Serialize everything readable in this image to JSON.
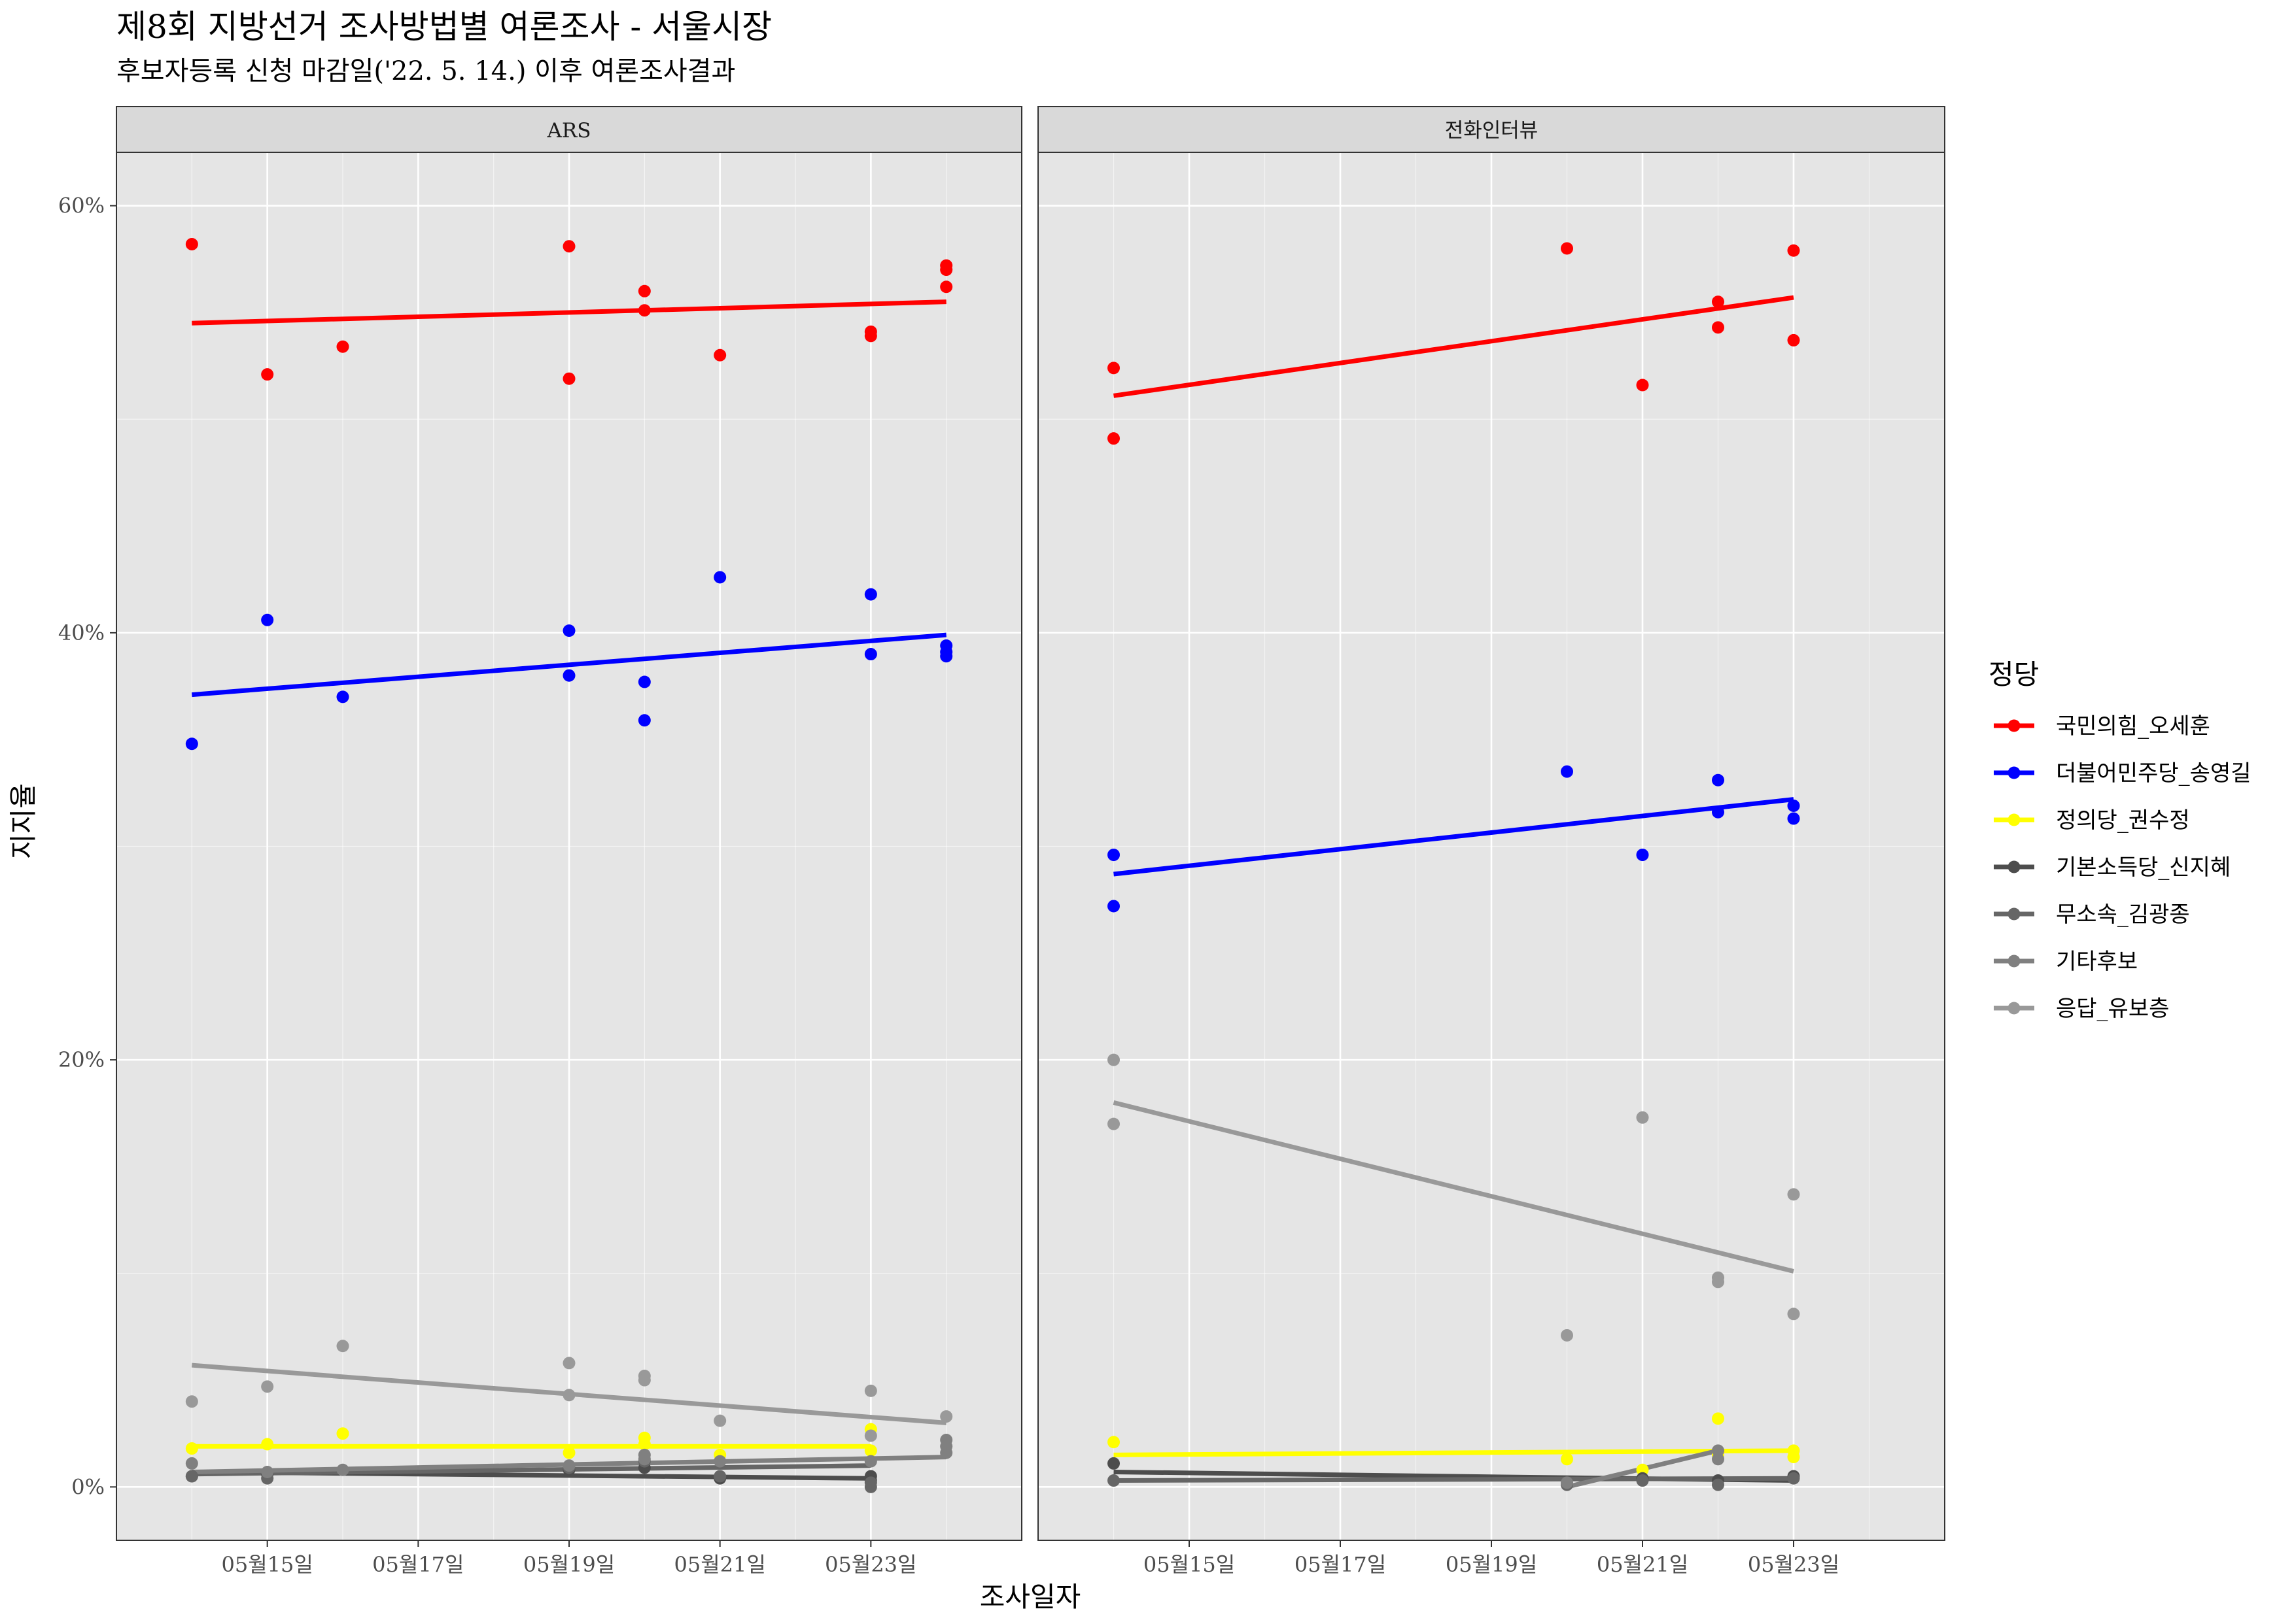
{
  "title": "제8회 지방선거 조사방법별 여론조사 - 서울시장",
  "subtitle": "후보자등록 신청 마감일('22. 5. 14.) 이후 여론조사결과",
  "chart_data": {
    "type": "scatter",
    "xlabel": "조사일자",
    "ylabel": "지지율",
    "x_domain": [
      "2022-05-13",
      "2022-05-25"
    ],
    "ylim": [
      -0.025,
      0.625
    ],
    "y_ticks": [
      0,
      0.2,
      0.4,
      0.6
    ],
    "y_tick_labels": [
      "0%",
      "20%",
      "40%",
      "60%"
    ],
    "x_ticks": [
      "2022-05-15",
      "2022-05-17",
      "2022-05-19",
      "2022-05-21",
      "2022-05-23"
    ],
    "x_tick_labels": [
      "05월15일",
      "05월17일",
      "05월19일",
      "05월21일",
      "05월23일"
    ],
    "grid": true,
    "legend": {
      "title": "정당",
      "position": "right",
      "entries": [
        "국민의힘_오세훈",
        "더불어민주당_송영길",
        "정의당_권수정",
        "기본소득당_신지혜",
        "무소속_김광종",
        "기타후보",
        "응답_유보층"
      ]
    },
    "series_colors": {
      "국민의힘_오세훈": "#ff0000",
      "더불어민주당_송영길": "#0000ff",
      "정의당_권수정": "#ffff00",
      "기본소득당_신지혜": "#4d4d4d",
      "무소속_김광종": "#666666",
      "기타후보": "#808080",
      "응답_유보층": "#999999"
    },
    "facets": [
      {
        "label": "ARS",
        "series": [
          {
            "name": "국민의힘_오세훈",
            "points": [
              [
                "2022-05-14",
                0.582
              ],
              [
                "2022-05-15",
                0.521
              ],
              [
                "2022-05-16",
                0.534
              ],
              [
                "2022-05-19",
                0.581
              ],
              [
                "2022-05-19",
                0.519
              ],
              [
                "2022-05-20",
                0.56
              ],
              [
                "2022-05-20",
                0.551
              ],
              [
                "2022-05-21",
                0.53
              ],
              [
                "2022-05-23",
                0.541
              ],
              [
                "2022-05-23",
                0.539
              ],
              [
                "2022-05-24",
                0.572
              ],
              [
                "2022-05-24",
                0.57
              ],
              [
                "2022-05-24",
                0.562
              ]
            ],
            "fit": [
              [
                "2022-05-14",
                0.545
              ],
              [
                "2022-05-24",
                0.555
              ]
            ]
          },
          {
            "name": "더불어민주당_송영길",
            "points": [
              [
                "2022-05-14",
                0.348
              ],
              [
                "2022-05-15",
                0.406
              ],
              [
                "2022-05-16",
                0.37
              ],
              [
                "2022-05-19",
                0.401
              ],
              [
                "2022-05-19",
                0.38
              ],
              [
                "2022-05-20",
                0.377
              ],
              [
                "2022-05-20",
                0.359
              ],
              [
                "2022-05-21",
                0.426
              ],
              [
                "2022-05-23",
                0.418
              ],
              [
                "2022-05-23",
                0.39
              ],
              [
                "2022-05-24",
                0.394
              ],
              [
                "2022-05-24",
                0.391
              ],
              [
                "2022-05-24",
                0.389
              ]
            ],
            "fit": [
              [
                "2022-05-14",
                0.371
              ],
              [
                "2022-05-24",
                0.399
              ]
            ]
          },
          {
            "name": "정의당_권수정",
            "points": [
              [
                "2022-05-14",
                0.018
              ],
              [
                "2022-05-15",
                0.02
              ],
              [
                "2022-05-16",
                0.025
              ],
              [
                "2022-05-19",
                0.016
              ],
              [
                "2022-05-20",
                0.023
              ],
              [
                "2022-05-20",
                0.02
              ],
              [
                "2022-05-21",
                0.015
              ],
              [
                "2022-05-23",
                0.027
              ],
              [
                "2022-05-23",
                0.017
              ]
            ],
            "fit": [
              [
                "2022-05-14",
                0.019
              ],
              [
                "2022-05-23",
                0.019
              ]
            ]
          },
          {
            "name": "기본소득당_신지혜",
            "points": [
              [
                "2022-05-14",
                0.005
              ],
              [
                "2022-05-15",
                0.006
              ],
              [
                "2022-05-19",
                0.008
              ],
              [
                "2022-05-20",
                0.009
              ],
              [
                "2022-05-21",
                0.004
              ],
              [
                "2022-05-23",
                0.003
              ],
              [
                "2022-05-23",
                0.005
              ]
            ],
            "fit": [
              [
                "2022-05-14",
                0.007
              ],
              [
                "2022-05-23",
                0.004
              ]
            ]
          },
          {
            "name": "무소속_김광종",
            "points": [
              [
                "2022-05-14",
                0.005
              ],
              [
                "2022-05-15",
                0.004
              ],
              [
                "2022-05-19",
                0.009
              ],
              [
                "2022-05-20",
                0.012
              ],
              [
                "2022-05-21",
                0.005
              ],
              [
                "2022-05-23",
                0.002
              ],
              [
                "2022-05-23",
                0.0
              ]
            ],
            "fit": [
              [
                "2022-05-14",
                0.006
              ],
              [
                "2022-05-23",
                0.01
              ]
            ]
          },
          {
            "name": "기타후보",
            "points": [
              [
                "2022-05-14",
                0.011
              ],
              [
                "2022-05-15",
                0.007
              ],
              [
                "2022-05-16",
                0.008
              ],
              [
                "2022-05-19",
                0.01
              ],
              [
                "2022-05-20",
                0.015
              ],
              [
                "2022-05-20",
                0.013
              ],
              [
                "2022-05-21",
                0.012
              ],
              [
                "2022-05-23",
                0.012
              ],
              [
                "2022-05-24",
                0.022
              ],
              [
                "2022-05-24",
                0.019
              ],
              [
                "2022-05-24",
                0.016
              ]
            ],
            "fit": [
              [
                "2022-05-14",
                0.007
              ],
              [
                "2022-05-24",
                0.014
              ]
            ]
          },
          {
            "name": "응답_유보층",
            "points": [
              [
                "2022-05-14",
                0.04
              ],
              [
                "2022-05-15",
                0.047
              ],
              [
                "2022-05-16",
                0.066
              ],
              [
                "2022-05-19",
                0.058
              ],
              [
                "2022-05-19",
                0.043
              ],
              [
                "2022-05-20",
                0.052
              ],
              [
                "2022-05-20",
                0.05
              ],
              [
                "2022-05-21",
                0.031
              ],
              [
                "2022-05-23",
                0.045
              ],
              [
                "2022-05-23",
                0.024
              ],
              [
                "2022-05-24",
                0.033
              ]
            ],
            "fit": [
              [
                "2022-05-14",
                0.057
              ],
              [
                "2022-05-24",
                0.03
              ]
            ]
          }
        ]
      },
      {
        "label": "전화인터뷰",
        "series": [
          {
            "name": "국민의힘_오세훈",
            "points": [
              [
                "2022-05-14",
                0.524
              ],
              [
                "2022-05-14",
                0.491
              ],
              [
                "2022-05-20",
                0.58
              ],
              [
                "2022-05-21",
                0.516
              ],
              [
                "2022-05-22",
                0.555
              ],
              [
                "2022-05-22",
                0.543
              ],
              [
                "2022-05-23",
                0.579
              ],
              [
                "2022-05-23",
                0.537
              ]
            ],
            "fit": [
              [
                "2022-05-14",
                0.511
              ],
              [
                "2022-05-23",
                0.557
              ]
            ]
          },
          {
            "name": "더불어민주당_송영길",
            "points": [
              [
                "2022-05-14",
                0.296
              ],
              [
                "2022-05-14",
                0.272
              ],
              [
                "2022-05-20",
                0.335
              ],
              [
                "2022-05-21",
                0.296
              ],
              [
                "2022-05-22",
                0.331
              ],
              [
                "2022-05-22",
                0.316
              ],
              [
                "2022-05-23",
                0.319
              ],
              [
                "2022-05-23",
                0.313
              ]
            ],
            "fit": [
              [
                "2022-05-14",
                0.287
              ],
              [
                "2022-05-23",
                0.322
              ]
            ]
          },
          {
            "name": "정의당_권수정",
            "points": [
              [
                "2022-05-14",
                0.021
              ],
              [
                "2022-05-20",
                0.013
              ],
              [
                "2022-05-21",
                0.008
              ],
              [
                "2022-05-22",
                0.032
              ],
              [
                "2022-05-22",
                0.015
              ],
              [
                "2022-05-23",
                0.017
              ],
              [
                "2022-05-23",
                0.014
              ]
            ],
            "fit": [
              [
                "2022-05-14",
                0.015
              ],
              [
                "2022-05-23",
                0.017
              ]
            ]
          },
          {
            "name": "기본소득당_신지혜",
            "points": [
              [
                "2022-05-14",
                0.011
              ],
              [
                "2022-05-21",
                0.004
              ],
              [
                "2022-05-22",
                0.003
              ],
              [
                "2022-05-23",
                0.005
              ]
            ],
            "fit": [
              [
                "2022-05-14",
                0.007
              ],
              [
                "2022-05-23",
                0.003
              ]
            ]
          },
          {
            "name": "무소속_김광종",
            "points": [
              [
                "2022-05-14",
                0.003
              ],
              [
                "2022-05-20",
                0.001
              ],
              [
                "2022-05-21",
                0.003
              ],
              [
                "2022-05-22",
                0.001
              ],
              [
                "2022-05-23",
                0.004
              ]
            ],
            "fit": [
              [
                "2022-05-14",
                0.003
              ],
              [
                "2022-05-23",
                0.004
              ]
            ]
          },
          {
            "name": "기타후보",
            "points": [
              [
                "2022-05-20",
                0.002
              ],
              [
                "2022-05-22",
                0.017
              ],
              [
                "2022-05-22",
                0.013
              ]
            ],
            "fit": [
              [
                "2022-05-20",
                0.0
              ],
              [
                "2022-05-22",
                0.017
              ]
            ]
          },
          {
            "name": "응답_유보층",
            "points": [
              [
                "2022-05-14",
                0.2
              ],
              [
                "2022-05-14",
                0.17
              ],
              [
                "2022-05-20",
                0.071
              ],
              [
                "2022-05-21",
                0.173
              ],
              [
                "2022-05-22",
                0.098
              ],
              [
                "2022-05-22",
                0.096
              ],
              [
                "2022-05-23",
                0.137
              ],
              [
                "2022-05-23",
                0.081
              ]
            ],
            "fit": [
              [
                "2022-05-14",
                0.18
              ],
              [
                "2022-05-23",
                0.101
              ]
            ]
          }
        ]
      }
    ]
  }
}
